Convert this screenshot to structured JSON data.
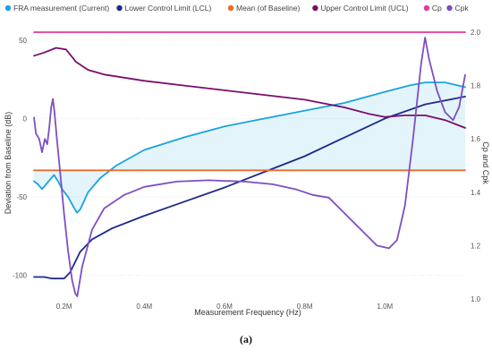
{
  "caption": "(a)",
  "chart_data": {
    "type": "line",
    "xlabel": "Measurement Frequency (Hz)",
    "ylabel_left": "Deviation from Baseline (dB)",
    "ylabel_right": "Cp and Cpk",
    "x_range": [
      125000,
      1200000
    ],
    "x_ticks": [
      {
        "v": 200000,
        "label": "0.2M"
      },
      {
        "v": 400000,
        "label": "0.4M"
      },
      {
        "v": 600000,
        "label": "0.6M"
      },
      {
        "v": 800000,
        "label": "0.8M"
      },
      {
        "v": 1000000,
        "label": "1.0M"
      }
    ],
    "y_left_range": [
      -115,
      55
    ],
    "y_left_ticks": [
      {
        "v": 50,
        "label": "50"
      },
      {
        "v": 0,
        "label": "0"
      },
      {
        "v": -50,
        "label": "-50"
      },
      {
        "v": -100,
        "label": "-100"
      }
    ],
    "y_right_range": [
      1.0,
      2.0
    ],
    "y_right_ticks": [
      {
        "v": 2.0,
        "label": "2.0"
      },
      {
        "v": 1.8,
        "label": "1.8"
      },
      {
        "v": 1.6,
        "label": "1.6"
      },
      {
        "v": 1.4,
        "label": "1.4"
      },
      {
        "v": 1.2,
        "label": "1.2"
      },
      {
        "v": 1.0,
        "label": "1.0"
      }
    ],
    "legend_position": "top",
    "series": [
      {
        "name": "FRA measurement (Current)",
        "axis": "left",
        "color": "#1aa3e0",
        "fill": true,
        "points": [
          [
            125000,
            -40
          ],
          [
            135000,
            -42
          ],
          [
            145000,
            -45
          ],
          [
            155000,
            -42
          ],
          [
            165000,
            -39
          ],
          [
            175000,
            -36
          ],
          [
            185000,
            -40
          ],
          [
            195000,
            -45
          ],
          [
            210000,
            -50
          ],
          [
            225000,
            -57
          ],
          [
            232000,
            -60
          ],
          [
            240000,
            -58
          ],
          [
            260000,
            -47
          ],
          [
            290000,
            -38
          ],
          [
            330000,
            -30
          ],
          [
            400000,
            -20
          ],
          [
            500000,
            -12
          ],
          [
            600000,
            -5
          ],
          [
            700000,
            0
          ],
          [
            800000,
            5
          ],
          [
            900000,
            10
          ],
          [
            1000000,
            17
          ],
          [
            1060000,
            21
          ],
          [
            1100000,
            23
          ],
          [
            1150000,
            23
          ],
          [
            1200000,
            20
          ]
        ]
      },
      {
        "name": "Lower Control Limit (LCL)",
        "axis": "left",
        "color": "#1f2a8c",
        "points": [
          [
            125000,
            -101
          ],
          [
            150000,
            -101
          ],
          [
            170000,
            -102
          ],
          [
            200000,
            -102
          ],
          [
            215000,
            -98
          ],
          [
            240000,
            -85
          ],
          [
            270000,
            -77
          ],
          [
            320000,
            -70
          ],
          [
            400000,
            -62
          ],
          [
            500000,
            -53
          ],
          [
            600000,
            -44
          ],
          [
            700000,
            -34
          ],
          [
            800000,
            -24
          ],
          [
            900000,
            -12
          ],
          [
            1000000,
            0
          ],
          [
            1100000,
            9
          ],
          [
            1200000,
            14
          ]
        ]
      },
      {
        "name": "Mean (of Baseline)",
        "axis": "left",
        "color": "#f06a2a",
        "points": [
          [
            125000,
            -33
          ],
          [
            1200000,
            -33
          ]
        ]
      },
      {
        "name": "Upper Control Limit (UCL)",
        "axis": "left",
        "color": "#7a0e6e",
        "points": [
          [
            125000,
            40
          ],
          [
            150000,
            42
          ],
          [
            180000,
            45
          ],
          [
            205000,
            44
          ],
          [
            230000,
            36
          ],
          [
            260000,
            31
          ],
          [
            300000,
            28
          ],
          [
            400000,
            24
          ],
          [
            500000,
            21
          ],
          [
            600000,
            18
          ],
          [
            700000,
            15
          ],
          [
            800000,
            12
          ],
          [
            900000,
            7
          ],
          [
            960000,
            3
          ],
          [
            1000000,
            1
          ],
          [
            1050000,
            2
          ],
          [
            1100000,
            2
          ],
          [
            1150000,
            -1
          ],
          [
            1200000,
            -6
          ]
        ]
      },
      {
        "name": "Cp",
        "axis": "right",
        "color": "#e5399a",
        "points": [
          [
            125000,
            2.0
          ],
          [
            1200000,
            2.0
          ]
        ]
      },
      {
        "name": "Cpk",
        "axis": "right",
        "color": "#7b4fc4",
        "points": [
          [
            125000,
            1.68
          ],
          [
            130000,
            1.62
          ],
          [
            138000,
            1.6
          ],
          [
            145000,
            1.55
          ],
          [
            152000,
            1.6
          ],
          [
            158000,
            1.58
          ],
          [
            163000,
            1.64
          ],
          [
            168000,
            1.72
          ],
          [
            172000,
            1.75
          ],
          [
            176000,
            1.7
          ],
          [
            182000,
            1.6
          ],
          [
            190000,
            1.48
          ],
          [
            200000,
            1.32
          ],
          [
            210000,
            1.18
          ],
          [
            220000,
            1.07
          ],
          [
            228000,
            1.02
          ],
          [
            233000,
            1.01
          ],
          [
            245000,
            1.12
          ],
          [
            270000,
            1.26
          ],
          [
            300000,
            1.34
          ],
          [
            350000,
            1.39
          ],
          [
            400000,
            1.42
          ],
          [
            480000,
            1.44
          ],
          [
            560000,
            1.445
          ],
          [
            650000,
            1.44
          ],
          [
            720000,
            1.43
          ],
          [
            780000,
            1.41
          ],
          [
            820000,
            1.39
          ],
          [
            860000,
            1.38
          ],
          [
            900000,
            1.32
          ],
          [
            940000,
            1.26
          ],
          [
            980000,
            1.2
          ],
          [
            1010000,
            1.19
          ],
          [
            1030000,
            1.22
          ],
          [
            1050000,
            1.35
          ],
          [
            1070000,
            1.6
          ],
          [
            1090000,
            1.88
          ],
          [
            1100000,
            1.98
          ],
          [
            1110000,
            1.9
          ],
          [
            1130000,
            1.78
          ],
          [
            1150000,
            1.7
          ],
          [
            1170000,
            1.67
          ],
          [
            1185000,
            1.72
          ],
          [
            1200000,
            1.84
          ]
        ]
      }
    ]
  }
}
